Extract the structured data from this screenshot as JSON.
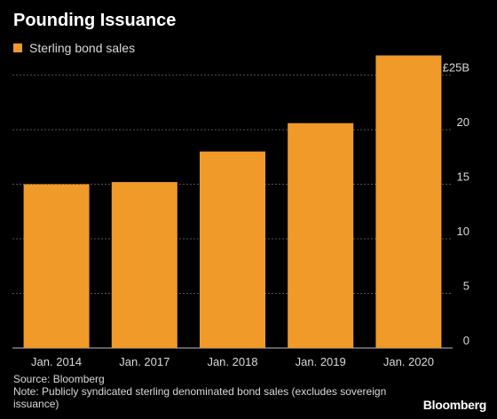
{
  "header": {
    "title": "Pounding Issuance"
  },
  "legend": {
    "label": "Sterling bond sales"
  },
  "footer": {
    "source": "Source: Bloomberg",
    "note": "Note: Publicly syndicated sterling denominated bond sales (excludes sovereign issuance)",
    "brand": "Bloomberg"
  },
  "colors": {
    "background": "#000000",
    "bar": "#f09a29",
    "grid": "#555555",
    "text": "#d9d9d9"
  },
  "chart_data": {
    "type": "bar",
    "title": "Pounding Issuance",
    "categories": [
      "Jan. 2014",
      "Jan. 2017",
      "Jan. 2018",
      "Jan. 2019",
      "Jan. 2020"
    ],
    "series": [
      {
        "name": "Sterling bond sales",
        "values": [
          15.0,
          15.2,
          18.0,
          20.6,
          26.8
        ]
      }
    ],
    "yticks": [
      {
        "value": 0,
        "label": "0"
      },
      {
        "value": 5,
        "label": "5"
      },
      {
        "value": 10,
        "label": "10"
      },
      {
        "value": 15,
        "label": "15"
      },
      {
        "value": 20,
        "label": "20"
      },
      {
        "value": 25,
        "label": "£25B"
      }
    ],
    "ylim": [
      0,
      27
    ],
    "grid": true,
    "legend_position": "top-left",
    "xlabel": "",
    "ylabel": ""
  }
}
